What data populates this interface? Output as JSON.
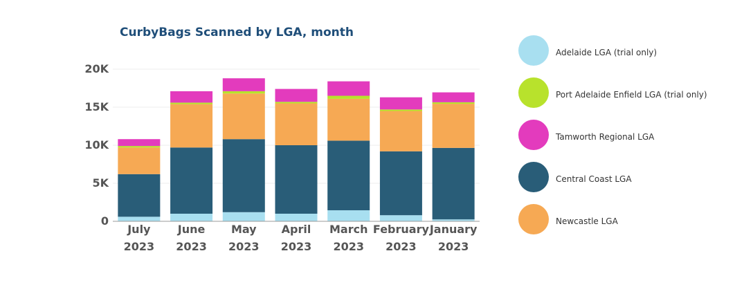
{
  "chart_data": {
    "type": "bar",
    "stacked": true,
    "title": "CurbyBags Scanned by LGA, month",
    "xlabel": "",
    "ylabel": "",
    "ylim": [
      0,
      20000
    ],
    "grid": true,
    "legend_position": "right",
    "yticks": [
      {
        "value": 0,
        "label": "0"
      },
      {
        "value": 5000,
        "label": "5K"
      },
      {
        "value": 10000,
        "label": "10K"
      },
      {
        "value": 15000,
        "label": "15K"
      },
      {
        "value": 20000,
        "label": "20K"
      }
    ],
    "categories": [
      [
        "July",
        "2023"
      ],
      [
        "June",
        "2023"
      ],
      [
        "May",
        "2023"
      ],
      [
        "April",
        "2023"
      ],
      [
        "March",
        "2023"
      ],
      [
        "February",
        "2023"
      ],
      [
        "January",
        "2023"
      ]
    ],
    "series": [
      {
        "name": "Adelaide LGA (trial only)",
        "color": "#a8dff0",
        "values": [
          600,
          1000,
          1200,
          1000,
          1450,
          800,
          250
        ]
      },
      {
        "name": "Central Coast LGA",
        "color": "#295d78",
        "values": [
          5600,
          8700,
          9600,
          9000,
          9150,
          8400,
          9400
        ]
      },
      {
        "name": "Newcastle LGA",
        "color": "#f6a954",
        "values": [
          3500,
          5700,
          6000,
          5500,
          5500,
          5300,
          5800
        ]
      },
      {
        "name": "Port Adelaide Enfield LGA (trial only)",
        "color": "#b8e22c",
        "values": [
          200,
          200,
          300,
          200,
          400,
          200,
          200
        ]
      },
      {
        "name": "Tamworth Regional LGA",
        "color": "#e33bbd",
        "values": [
          900,
          1500,
          1700,
          1700,
          1900,
          1600,
          1300
        ]
      }
    ],
    "legend": [
      {
        "name": "Adelaide LGA (trial only)",
        "color": "#a8dff0"
      },
      {
        "name": "Port Adelaide Enfield LGA (trial only)",
        "color": "#b8e22c"
      },
      {
        "name": "Tamworth Regional LGA",
        "color": "#e33bbd"
      },
      {
        "name": "Central Coast LGA",
        "color": "#295d78"
      },
      {
        "name": "Newcastle LGA",
        "color": "#f6a954"
      }
    ]
  }
}
